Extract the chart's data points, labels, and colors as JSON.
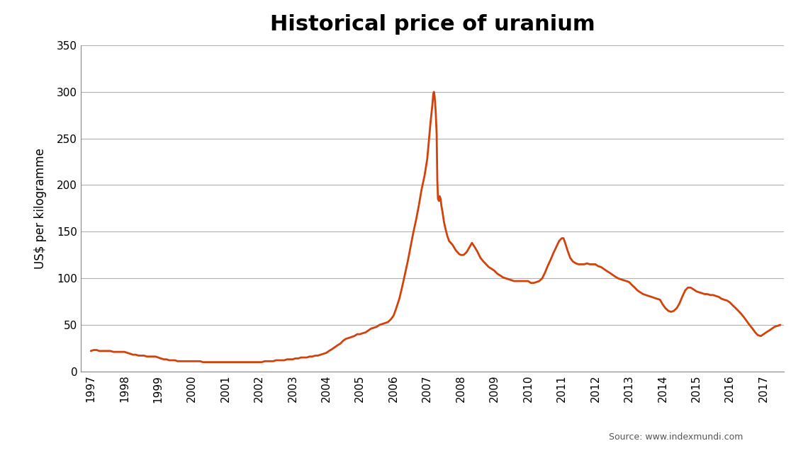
{
  "title": "Historical price of uranium",
  "ylabel": "US$ per kilogramme",
  "source_text": "Source: www.indexmundi.com",
  "line_color": "#D2420A",
  "background_color": "#ffffff",
  "plot_bg_color": "#ffffff",
  "xlim_start": 1996.7,
  "xlim_end": 2017.6,
  "ylim": [
    0,
    350
  ],
  "yticks": [
    0,
    50,
    100,
    150,
    200,
    250,
    300,
    350
  ],
  "xtick_years": [
    1997,
    1998,
    1999,
    2000,
    2001,
    2002,
    2003,
    2004,
    2005,
    2006,
    2007,
    2008,
    2009,
    2010,
    2011,
    2012,
    2013,
    2014,
    2015,
    2016,
    2017
  ],
  "data": [
    [
      1997.0,
      22
    ],
    [
      1997.08,
      23
    ],
    [
      1997.17,
      23
    ],
    [
      1997.25,
      22
    ],
    [
      1997.33,
      22
    ],
    [
      1997.42,
      22
    ],
    [
      1997.5,
      22
    ],
    [
      1997.58,
      22
    ],
    [
      1997.67,
      21
    ],
    [
      1997.75,
      21
    ],
    [
      1997.83,
      21
    ],
    [
      1997.92,
      21
    ],
    [
      1998.0,
      21
    ],
    [
      1998.08,
      20
    ],
    [
      1998.17,
      19
    ],
    [
      1998.25,
      18
    ],
    [
      1998.33,
      18
    ],
    [
      1998.42,
      17
    ],
    [
      1998.5,
      17
    ],
    [
      1998.58,
      17
    ],
    [
      1998.67,
      16
    ],
    [
      1998.75,
      16
    ],
    [
      1998.83,
      16
    ],
    [
      1998.92,
      16
    ],
    [
      1999.0,
      15
    ],
    [
      1999.08,
      14
    ],
    [
      1999.17,
      13
    ],
    [
      1999.25,
      13
    ],
    [
      1999.33,
      12
    ],
    [
      1999.42,
      12
    ],
    [
      1999.5,
      12
    ],
    [
      1999.58,
      11
    ],
    [
      1999.67,
      11
    ],
    [
      1999.75,
      11
    ],
    [
      1999.83,
      11
    ],
    [
      1999.92,
      11
    ],
    [
      2000.0,
      11
    ],
    [
      2000.08,
      11
    ],
    [
      2000.17,
      11
    ],
    [
      2000.25,
      11
    ],
    [
      2000.33,
      10
    ],
    [
      2000.42,
      10
    ],
    [
      2000.5,
      10
    ],
    [
      2000.58,
      10
    ],
    [
      2000.67,
      10
    ],
    [
      2000.75,
      10
    ],
    [
      2000.83,
      10
    ],
    [
      2000.92,
      10
    ],
    [
      2001.0,
      10
    ],
    [
      2001.08,
      10
    ],
    [
      2001.17,
      10
    ],
    [
      2001.25,
      10
    ],
    [
      2001.33,
      10
    ],
    [
      2001.42,
      10
    ],
    [
      2001.5,
      10
    ],
    [
      2001.58,
      10
    ],
    [
      2001.67,
      10
    ],
    [
      2001.75,
      10
    ],
    [
      2001.83,
      10
    ],
    [
      2001.92,
      10
    ],
    [
      2002.0,
      10
    ],
    [
      2002.08,
      10
    ],
    [
      2002.17,
      11
    ],
    [
      2002.25,
      11
    ],
    [
      2002.33,
      11
    ],
    [
      2002.42,
      11
    ],
    [
      2002.5,
      12
    ],
    [
      2002.58,
      12
    ],
    [
      2002.67,
      12
    ],
    [
      2002.75,
      12
    ],
    [
      2002.83,
      13
    ],
    [
      2002.92,
      13
    ],
    [
      2003.0,
      13
    ],
    [
      2003.08,
      14
    ],
    [
      2003.17,
      14
    ],
    [
      2003.25,
      15
    ],
    [
      2003.33,
      15
    ],
    [
      2003.42,
      15
    ],
    [
      2003.5,
      16
    ],
    [
      2003.58,
      16
    ],
    [
      2003.67,
      17
    ],
    [
      2003.75,
      17
    ],
    [
      2003.83,
      18
    ],
    [
      2003.92,
      19
    ],
    [
      2004.0,
      20
    ],
    [
      2004.08,
      22
    ],
    [
      2004.17,
      24
    ],
    [
      2004.25,
      26
    ],
    [
      2004.33,
      28
    ],
    [
      2004.42,
      30
    ],
    [
      2004.5,
      33
    ],
    [
      2004.58,
      35
    ],
    [
      2004.67,
      36
    ],
    [
      2004.75,
      37
    ],
    [
      2004.83,
      38
    ],
    [
      2004.92,
      40
    ],
    [
      2005.0,
      40
    ],
    [
      2005.08,
      41
    ],
    [
      2005.17,
      42
    ],
    [
      2005.25,
      44
    ],
    [
      2005.33,
      46
    ],
    [
      2005.42,
      47
    ],
    [
      2005.5,
      48
    ],
    [
      2005.58,
      50
    ],
    [
      2005.67,
      51
    ],
    [
      2005.75,
      52
    ],
    [
      2005.83,
      53
    ],
    [
      2005.92,
      56
    ],
    [
      2006.0,
      60
    ],
    [
      2006.08,
      68
    ],
    [
      2006.17,
      78
    ],
    [
      2006.25,
      90
    ],
    [
      2006.33,
      103
    ],
    [
      2006.42,
      118
    ],
    [
      2006.5,
      133
    ],
    [
      2006.58,
      148
    ],
    [
      2006.67,
      163
    ],
    [
      2006.75,
      178
    ],
    [
      2006.83,
      195
    ],
    [
      2006.92,
      210
    ],
    [
      2007.0,
      228
    ],
    [
      2007.05,
      248
    ],
    [
      2007.1,
      268
    ],
    [
      2007.15,
      285
    ],
    [
      2007.18,
      298
    ],
    [
      2007.2,
      300
    ],
    [
      2007.22,
      295
    ],
    [
      2007.25,
      280
    ],
    [
      2007.28,
      255
    ],
    [
      2007.3,
      205
    ],
    [
      2007.32,
      185
    ],
    [
      2007.35,
      183
    ],
    [
      2007.37,
      188
    ],
    [
      2007.4,
      185
    ],
    [
      2007.42,
      178
    ],
    [
      2007.45,
      172
    ],
    [
      2007.48,
      165
    ],
    [
      2007.5,
      160
    ],
    [
      2007.55,
      152
    ],
    [
      2007.6,
      145
    ],
    [
      2007.65,
      140
    ],
    [
      2007.7,
      138
    ],
    [
      2007.75,
      136
    ],
    [
      2007.8,
      133
    ],
    [
      2007.85,
      130
    ],
    [
      2007.9,
      128
    ],
    [
      2007.95,
      126
    ],
    [
      2008.0,
      125
    ],
    [
      2008.08,
      125
    ],
    [
      2008.17,
      128
    ],
    [
      2008.25,
      133
    ],
    [
      2008.33,
      138
    ],
    [
      2008.42,
      133
    ],
    [
      2008.5,
      128
    ],
    [
      2008.58,
      122
    ],
    [
      2008.67,
      118
    ],
    [
      2008.75,
      115
    ],
    [
      2008.83,
      112
    ],
    [
      2008.92,
      110
    ],
    [
      2009.0,
      108
    ],
    [
      2009.08,
      105
    ],
    [
      2009.17,
      103
    ],
    [
      2009.25,
      101
    ],
    [
      2009.33,
      100
    ],
    [
      2009.42,
      99
    ],
    [
      2009.5,
      98
    ],
    [
      2009.58,
      97
    ],
    [
      2009.67,
      97
    ],
    [
      2009.75,
      97
    ],
    [
      2009.83,
      97
    ],
    [
      2009.92,
      97
    ],
    [
      2010.0,
      97
    ],
    [
      2010.08,
      95
    ],
    [
      2010.17,
      95
    ],
    [
      2010.25,
      96
    ],
    [
      2010.33,
      97
    ],
    [
      2010.42,
      100
    ],
    [
      2010.5,
      106
    ],
    [
      2010.58,
      113
    ],
    [
      2010.67,
      120
    ],
    [
      2010.75,
      127
    ],
    [
      2010.83,
      133
    ],
    [
      2010.92,
      140
    ],
    [
      2011.0,
      143
    ],
    [
      2011.05,
      143
    ],
    [
      2011.1,
      138
    ],
    [
      2011.17,
      130
    ],
    [
      2011.25,
      122
    ],
    [
      2011.33,
      118
    ],
    [
      2011.42,
      116
    ],
    [
      2011.5,
      115
    ],
    [
      2011.58,
      115
    ],
    [
      2011.67,
      115
    ],
    [
      2011.75,
      116
    ],
    [
      2011.83,
      115
    ],
    [
      2011.92,
      115
    ],
    [
      2012.0,
      115
    ],
    [
      2012.08,
      113
    ],
    [
      2012.17,
      112
    ],
    [
      2012.25,
      110
    ],
    [
      2012.33,
      108
    ],
    [
      2012.42,
      106
    ],
    [
      2012.5,
      104
    ],
    [
      2012.58,
      102
    ],
    [
      2012.67,
      100
    ],
    [
      2012.75,
      99
    ],
    [
      2012.83,
      98
    ],
    [
      2012.92,
      97
    ],
    [
      2013.0,
      96
    ],
    [
      2013.08,
      93
    ],
    [
      2013.17,
      90
    ],
    [
      2013.25,
      87
    ],
    [
      2013.33,
      85
    ],
    [
      2013.42,
      83
    ],
    [
      2013.5,
      82
    ],
    [
      2013.58,
      81
    ],
    [
      2013.67,
      80
    ],
    [
      2013.75,
      79
    ],
    [
      2013.83,
      78
    ],
    [
      2013.92,
      77
    ],
    [
      2014.0,
      72
    ],
    [
      2014.08,
      68
    ],
    [
      2014.17,
      65
    ],
    [
      2014.25,
      64
    ],
    [
      2014.33,
      65
    ],
    [
      2014.42,
      68
    ],
    [
      2014.5,
      73
    ],
    [
      2014.58,
      80
    ],
    [
      2014.67,
      87
    ],
    [
      2014.75,
      90
    ],
    [
      2014.83,
      90
    ],
    [
      2014.92,
      88
    ],
    [
      2015.0,
      86
    ],
    [
      2015.08,
      85
    ],
    [
      2015.17,
      84
    ],
    [
      2015.25,
      83
    ],
    [
      2015.33,
      83
    ],
    [
      2015.42,
      82
    ],
    [
      2015.5,
      82
    ],
    [
      2015.58,
      81
    ],
    [
      2015.67,
      80
    ],
    [
      2015.75,
      78
    ],
    [
      2015.83,
      77
    ],
    [
      2015.92,
      76
    ],
    [
      2016.0,
      74
    ],
    [
      2016.08,
      71
    ],
    [
      2016.17,
      68
    ],
    [
      2016.25,
      65
    ],
    [
      2016.33,
      62
    ],
    [
      2016.42,
      58
    ],
    [
      2016.5,
      54
    ],
    [
      2016.58,
      50
    ],
    [
      2016.67,
      46
    ],
    [
      2016.75,
      42
    ],
    [
      2016.83,
      39
    ],
    [
      2016.92,
      38
    ],
    [
      2017.0,
      40
    ],
    [
      2017.08,
      42
    ],
    [
      2017.17,
      44
    ],
    [
      2017.25,
      46
    ],
    [
      2017.33,
      48
    ],
    [
      2017.42,
      49
    ],
    [
      2017.5,
      50
    ]
  ]
}
